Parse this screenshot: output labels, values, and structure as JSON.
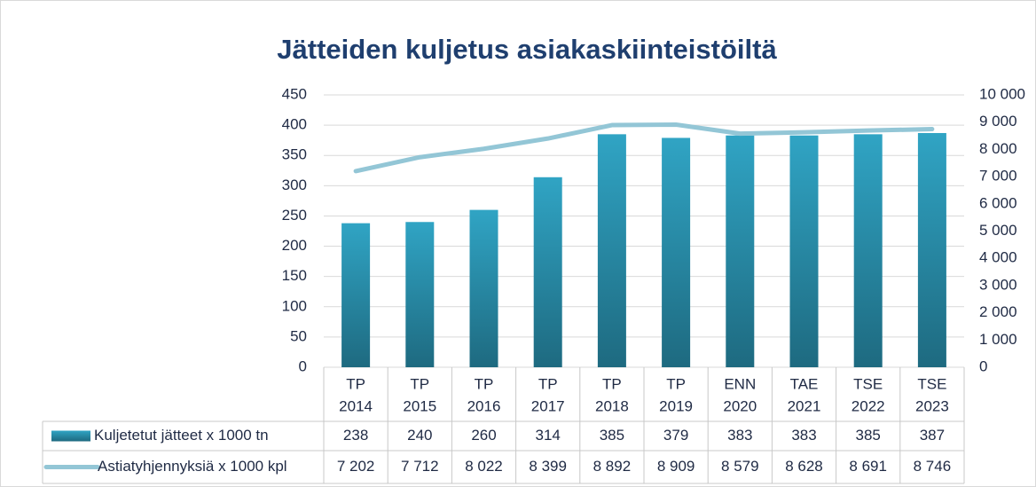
{
  "chart_data": {
    "type": "bar-line",
    "title": "Jätteiden kuljetus asiakaskiinteistöiltä",
    "categories": [
      [
        "TP",
        "2014"
      ],
      [
        "TP",
        "2015"
      ],
      [
        "TP",
        "2016"
      ],
      [
        "TP",
        "2017"
      ],
      [
        "TP",
        "2018"
      ],
      [
        "TP",
        "2019"
      ],
      [
        "ENN",
        "2020"
      ],
      [
        "TAE",
        "2021"
      ],
      [
        "TSE",
        "2022"
      ],
      [
        "TSE",
        "2023"
      ]
    ],
    "series": [
      {
        "name": "Kuljetetut jätteet x 1000 tn",
        "type": "bar",
        "color": "#2a93b0",
        "values": [
          238,
          240,
          260,
          314,
          385,
          379,
          383,
          383,
          385,
          387
        ]
      },
      {
        "name": "Astiatyhjennyksiä x 1000 kpl",
        "type": "line",
        "axis": "y2",
        "color": "#93c6d6",
        "values": [
          7202,
          7712,
          8022,
          8399,
          8892,
          8909,
          8579,
          8628,
          8691,
          8746
        ],
        "value_labels": [
          "7 202",
          "7 712",
          "8 022",
          "8 399",
          "8 892",
          "8 909",
          "8 579",
          "8 628",
          "8 691",
          "8 746"
        ]
      }
    ],
    "ylim": [
      0,
      450
    ],
    "yticks": [
      0,
      50,
      100,
      150,
      200,
      250,
      300,
      350,
      400,
      450
    ],
    "y2lim": [
      0,
      10000
    ],
    "y2ticks": [
      0,
      {
        "value": 1000,
        "label": "1 000"
      },
      {
        "value": 2000,
        "label": "2 000"
      },
      {
        "value": 3000,
        "label": "3 000"
      },
      {
        "value": 4000,
        "label": "4 000"
      },
      {
        "value": 5000,
        "label": "5 000"
      },
      {
        "value": 6000,
        "label": "6 000"
      },
      {
        "value": 7000,
        "label": "7 000"
      },
      {
        "value": 8000,
        "label": "8 000"
      },
      {
        "value": 9000,
        "label": "9 000"
      },
      {
        "value": 10000,
        "label": "10 000"
      }
    ],
    "grid": true
  }
}
